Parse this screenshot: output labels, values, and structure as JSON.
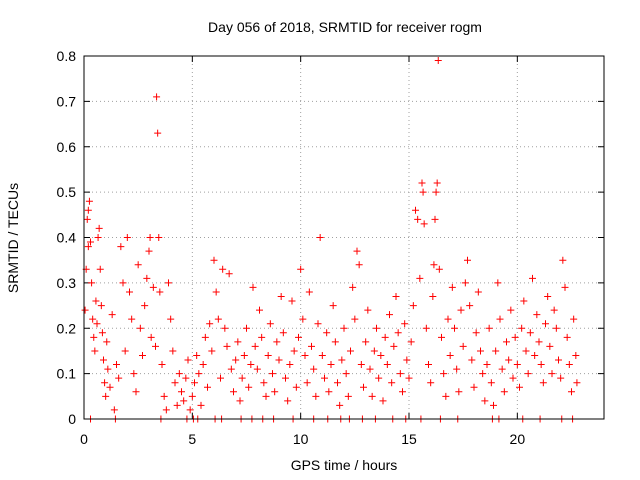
{
  "chart_data": {
    "type": "scatter",
    "title": "Day 056 of 2018, SRMTID for receiver rogm",
    "xlabel": "GPS time / hours",
    "ylabel": "SRMTID / TECUs",
    "xlim": [
      0,
      24
    ],
    "ylim": [
      0,
      0.8
    ],
    "x_ticks": [
      0,
      5,
      10,
      15,
      20
    ],
    "y_ticks": [
      0,
      0.1,
      0.2,
      0.3,
      0.4,
      0.5,
      0.6,
      0.7,
      0.8
    ],
    "grid": true,
    "marker": "+",
    "color": "#ff0000",
    "series": [
      {
        "name": "SRMTID",
        "points": [
          [
            0.05,
            0.24
          ],
          [
            0.1,
            0.33
          ],
          [
            0.15,
            0.44
          ],
          [
            0.2,
            0.46
          ],
          [
            0.25,
            0.48
          ],
          [
            0.3,
            0.39
          ],
          [
            0.2,
            0.38
          ],
          [
            0.35,
            0.3
          ],
          [
            0.4,
            0.22
          ],
          [
            0.45,
            0.18
          ],
          [
            0.5,
            0.15
          ],
          [
            0.55,
            0.26
          ],
          [
            0.6,
            0.21
          ],
          [
            0.65,
            0.4
          ],
          [
            0.7,
            0.42
          ],
          [
            0.75,
            0.33
          ],
          [
            0.8,
            0.25
          ],
          [
            0.85,
            0.19
          ],
          [
            0.9,
            0.13
          ],
          [
            0.95,
            0.08
          ],
          [
            1.0,
            0.05
          ],
          [
            1.05,
            0.17
          ],
          [
            1.1,
            0.11
          ],
          [
            1.2,
            0.07
          ],
          [
            1.3,
            0.23
          ],
          [
            1.4,
            0.02
          ],
          [
            1.5,
            0.12
          ],
          [
            1.6,
            0.09
          ],
          [
            1.7,
            0.38
          ],
          [
            1.8,
            0.3
          ],
          [
            1.9,
            0.15
          ],
          [
            2.0,
            0.4
          ],
          [
            2.1,
            0.28
          ],
          [
            2.2,
            0.22
          ],
          [
            2.3,
            0.1
          ],
          [
            2.4,
            0.06
          ],
          [
            2.5,
            0.34
          ],
          [
            2.6,
            0.2
          ],
          [
            2.7,
            0.14
          ],
          [
            2.8,
            0.25
          ],
          [
            2.9,
            0.31
          ],
          [
            3.0,
            0.37
          ],
          [
            3.05,
            0.4
          ],
          [
            3.1,
            0.18
          ],
          [
            3.2,
            0.29
          ],
          [
            3.3,
            0.16
          ],
          [
            3.35,
            0.71
          ],
          [
            3.4,
            0.63
          ],
          [
            3.45,
            0.4
          ],
          [
            3.5,
            0.28
          ],
          [
            3.6,
            0.12
          ],
          [
            3.7,
            0.05
          ],
          [
            3.8,
            0.02
          ],
          [
            3.9,
            0.3
          ],
          [
            4.0,
            0.22
          ],
          [
            4.1,
            0.15
          ],
          [
            4.2,
            0.08
          ],
          [
            4.3,
            0.03
          ],
          [
            4.4,
            0.1
          ],
          [
            4.5,
            0.06
          ],
          [
            4.6,
            0.04
          ],
          [
            4.7,
            0.09
          ],
          [
            4.8,
            0.13
          ],
          [
            4.9,
            0.02
          ],
          [
            5.0,
            0.05
          ],
          [
            5.1,
            0.08
          ],
          [
            5.2,
            0.14
          ],
          [
            5.3,
            0.1
          ],
          [
            5.4,
            0.03
          ],
          [
            5.5,
            0.12
          ],
          [
            5.6,
            0.18
          ],
          [
            5.7,
            0.07
          ],
          [
            5.8,
            0.21
          ],
          [
            5.9,
            0.15
          ],
          [
            6.0,
            0.35
          ],
          [
            6.1,
            0.28
          ],
          [
            6.2,
            0.22
          ],
          [
            6.3,
            0.09
          ],
          [
            6.4,
            0.33
          ],
          [
            6.5,
            0.2
          ],
          [
            6.6,
            0.16
          ],
          [
            6.7,
            0.32
          ],
          [
            6.8,
            0.11
          ],
          [
            6.9,
            0.06
          ],
          [
            7.0,
            0.13
          ],
          [
            7.1,
            0.17
          ],
          [
            7.2,
            0.04
          ],
          [
            7.3,
            0.09
          ],
          [
            7.4,
            0.14
          ],
          [
            7.5,
            0.2
          ],
          [
            7.6,
            0.07
          ],
          [
            7.7,
            0.12
          ],
          [
            7.8,
            0.29
          ],
          [
            7.9,
            0.16
          ],
          [
            8.0,
            0.11
          ],
          [
            8.1,
            0.24
          ],
          [
            8.2,
            0.18
          ],
          [
            8.3,
            0.08
          ],
          [
            8.4,
            0.05
          ],
          [
            8.5,
            0.14
          ],
          [
            8.6,
            0.21
          ],
          [
            8.7,
            0.1
          ],
          [
            8.8,
            0.06
          ],
          [
            8.9,
            0.17
          ],
          [
            9.0,
            0.13
          ],
          [
            9.1,
            0.27
          ],
          [
            9.2,
            0.19
          ],
          [
            9.3,
            0.09
          ],
          [
            9.4,
            0.04
          ],
          [
            9.5,
            0.12
          ],
          [
            9.6,
            0.26
          ],
          [
            9.7,
            0.15
          ],
          [
            9.8,
            0.07
          ],
          [
            9.9,
            0.18
          ],
          [
            10.0,
            0.33
          ],
          [
            10.1,
            0.22
          ],
          [
            10.2,
            0.14
          ],
          [
            10.3,
            0.08
          ],
          [
            10.4,
            0.28
          ],
          [
            10.5,
            0.16
          ],
          [
            10.6,
            0.11
          ],
          [
            10.7,
            0.05
          ],
          [
            10.8,
            0.21
          ],
          [
            10.9,
            0.4
          ],
          [
            11.0,
            0.14
          ],
          [
            11.1,
            0.09
          ],
          [
            11.2,
            0.19
          ],
          [
            11.3,
            0.06
          ],
          [
            11.4,
            0.12
          ],
          [
            11.5,
            0.25
          ],
          [
            11.6,
            0.17
          ],
          [
            11.7,
            0.08
          ],
          [
            11.8,
            0.03
          ],
          [
            11.9,
            0.13
          ],
          [
            12.0,
            0.2
          ],
          [
            12.1,
            0.1
          ],
          [
            12.2,
            0.05
          ],
          [
            12.3,
            0.15
          ],
          [
            12.4,
            0.29
          ],
          [
            12.5,
            0.22
          ],
          [
            12.6,
            0.37
          ],
          [
            12.7,
            0.34
          ],
          [
            12.8,
            0.12
          ],
          [
            12.9,
            0.07
          ],
          [
            13.0,
            0.17
          ],
          [
            13.1,
            0.24
          ],
          [
            13.2,
            0.11
          ],
          [
            13.3,
            0.05
          ],
          [
            13.4,
            0.15
          ],
          [
            13.5,
            0.2
          ],
          [
            13.6,
            0.09
          ],
          [
            13.7,
            0.14
          ],
          [
            13.8,
            0.04
          ],
          [
            13.9,
            0.18
          ],
          [
            14.0,
            0.12
          ],
          [
            14.1,
            0.23
          ],
          [
            14.2,
            0.08
          ],
          [
            14.3,
            0.16
          ],
          [
            14.4,
            0.27
          ],
          [
            14.5,
            0.19
          ],
          [
            14.6,
            0.1
          ],
          [
            14.7,
            0.06
          ],
          [
            14.8,
            0.21
          ],
          [
            14.9,
            0.13
          ],
          [
            15.0,
            0.09
          ],
          [
            15.1,
            0.17
          ],
          [
            15.2,
            0.25
          ],
          [
            15.3,
            0.46
          ],
          [
            15.4,
            0.44
          ],
          [
            15.5,
            0.31
          ],
          [
            15.6,
            0.52
          ],
          [
            15.65,
            0.5
          ],
          [
            15.7,
            0.43
          ],
          [
            15.8,
            0.2
          ],
          [
            15.9,
            0.12
          ],
          [
            16.0,
            0.08
          ],
          [
            16.1,
            0.27
          ],
          [
            16.15,
            0.34
          ],
          [
            16.2,
            0.44
          ],
          [
            16.25,
            0.5
          ],
          [
            16.3,
            0.52
          ],
          [
            16.35,
            0.79
          ],
          [
            16.4,
            0.33
          ],
          [
            16.5,
            0.18
          ],
          [
            16.6,
            0.1
          ],
          [
            16.7,
            0.05
          ],
          [
            16.8,
            0.22
          ],
          [
            16.9,
            0.14
          ],
          [
            17.0,
            0.29
          ],
          [
            17.1,
            0.2
          ],
          [
            17.2,
            0.11
          ],
          [
            17.3,
            0.06
          ],
          [
            17.4,
            0.24
          ],
          [
            17.5,
            0.16
          ],
          [
            17.6,
            0.3
          ],
          [
            17.7,
            0.35
          ],
          [
            17.8,
            0.25
          ],
          [
            17.9,
            0.13
          ],
          [
            18.0,
            0.07
          ],
          [
            18.1,
            0.19
          ],
          [
            18.2,
            0.28
          ],
          [
            18.3,
            0.15
          ],
          [
            18.4,
            0.1
          ],
          [
            18.5,
            0.04
          ],
          [
            18.6,
            0.12
          ],
          [
            18.7,
            0.2
          ],
          [
            18.8,
            0.08
          ],
          [
            18.9,
            0.03
          ],
          [
            19.0,
            0.15
          ],
          [
            19.1,
            0.3
          ],
          [
            19.2,
            0.22
          ],
          [
            19.3,
            0.11
          ],
          [
            19.4,
            0.06
          ],
          [
            19.5,
            0.17
          ],
          [
            19.6,
            0.13
          ],
          [
            19.7,
            0.24
          ],
          [
            19.8,
            0.09
          ],
          [
            19.9,
            0.18
          ],
          [
            20.0,
            0.12
          ],
          [
            20.1,
            0.07
          ],
          [
            20.2,
            0.2
          ],
          [
            20.3,
            0.26
          ],
          [
            20.4,
            0.15
          ],
          [
            20.5,
            0.1
          ],
          [
            20.6,
            0.19
          ],
          [
            20.7,
            0.31
          ],
          [
            20.8,
            0.14
          ],
          [
            20.9,
            0.23
          ],
          [
            21.0,
            0.17
          ],
          [
            21.1,
            0.12
          ],
          [
            21.2,
            0.08
          ],
          [
            21.3,
            0.21
          ],
          [
            21.4,
            0.27
          ],
          [
            21.5,
            0.16
          ],
          [
            21.6,
            0.1
          ],
          [
            21.7,
            0.24
          ],
          [
            21.8,
            0.2
          ],
          [
            21.9,
            0.13
          ],
          [
            22.0,
            0.09
          ],
          [
            22.1,
            0.35
          ],
          [
            22.2,
            0.29
          ],
          [
            22.3,
            0.18
          ],
          [
            22.4,
            0.12
          ],
          [
            22.5,
            0.06
          ],
          [
            22.6,
            0.22
          ],
          [
            22.7,
            0.14
          ],
          [
            22.75,
            0.08
          ],
          [
            0.3,
            0.0
          ],
          [
            1.45,
            0.0
          ],
          [
            3.55,
            0.0
          ],
          [
            4.75,
            0.0
          ],
          [
            5.05,
            0.0
          ],
          [
            5.25,
            0.0
          ],
          [
            6.05,
            0.0
          ],
          [
            6.35,
            0.0
          ],
          [
            7.25,
            0.0
          ],
          [
            7.75,
            0.0
          ],
          [
            8.25,
            0.0
          ],
          [
            8.75,
            0.0
          ],
          [
            9.65,
            0.0
          ],
          [
            10.6,
            0.0
          ],
          [
            11.25,
            0.0
          ],
          [
            11.85,
            0.0
          ],
          [
            12.25,
            0.0
          ],
          [
            12.85,
            0.0
          ],
          [
            13.45,
            0.0
          ],
          [
            14.25,
            0.0
          ],
          [
            14.85,
            0.0
          ],
          [
            15.55,
            0.0
          ],
          [
            16.45,
            0.0
          ],
          [
            17.25,
            0.0
          ],
          [
            18.85,
            0.0
          ],
          [
            19.15,
            0.0
          ],
          [
            20.25,
            0.0
          ],
          [
            21.05,
            0.0
          ],
          [
            22.05,
            0.0
          ],
          [
            22.55,
            0.0
          ]
        ]
      }
    ]
  }
}
